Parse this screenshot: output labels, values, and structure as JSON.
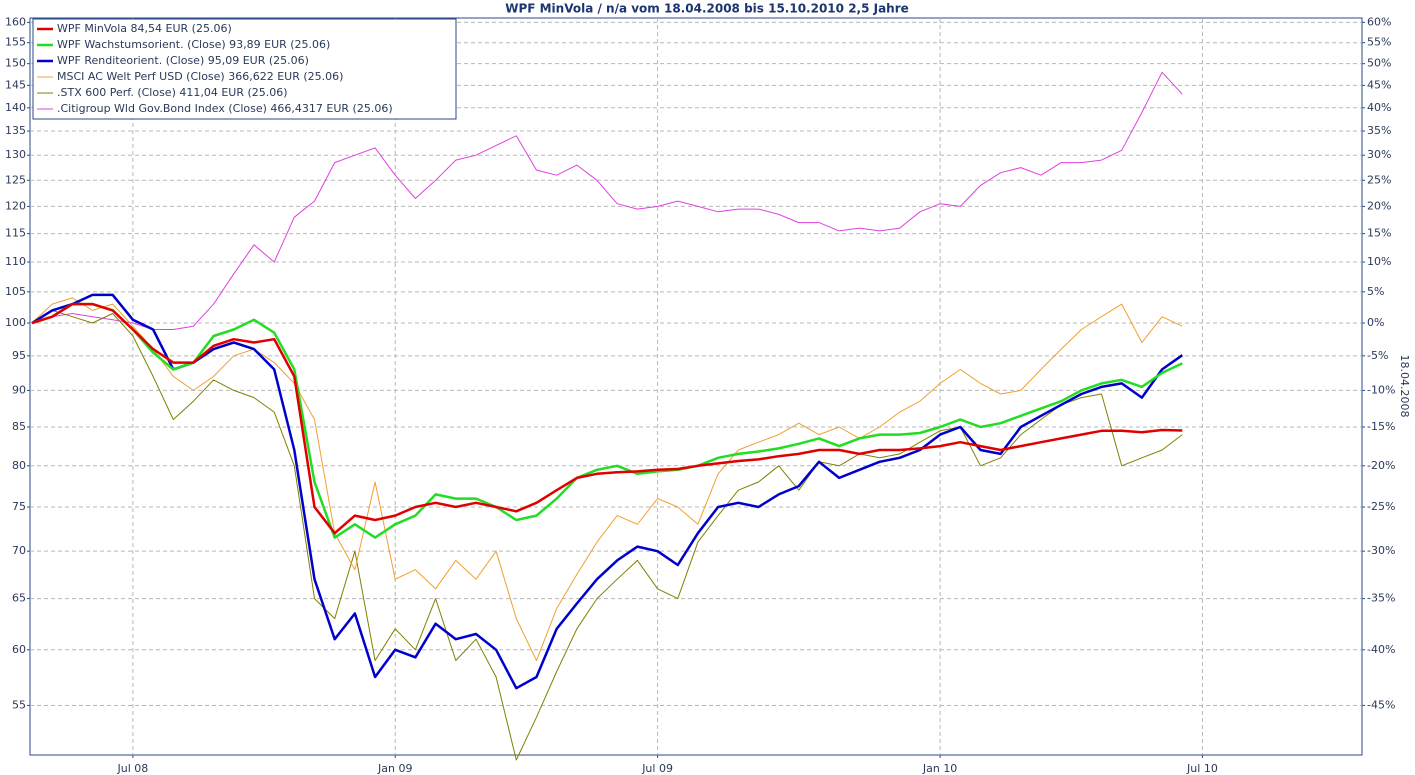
{
  "chart_data": {
    "type": "line",
    "title": "WPF MinVola / n/a vom 18.04.2008 bis 15.10.2010 2,5 Jahre",
    "y2_label": "18.04.2008",
    "yscale": "log",
    "y2scale": "log",
    "grid": true,
    "legend": "upper left",
    "categories": [
      null,
      null,
      null,
      null,
      null,
      "Jul 08",
      null,
      null,
      null,
      null,
      null,
      null,
      null,
      null,
      null,
      null,
      null,
      null,
      "Jan 09",
      null,
      null,
      null,
      null,
      null,
      null,
      null,
      null,
      null,
      null,
      null,
      null,
      "Jul 09",
      null,
      null,
      null,
      null,
      null,
      null,
      null,
      null,
      null,
      null,
      null,
      null,
      null,
      "Jan 10",
      null,
      null,
      null,
      null,
      null,
      null,
      null,
      null,
      null,
      null,
      null,
      null,
      "Jul 10"
    ],
    "ylim": [
      50.9,
      161.1
    ],
    "yticks": [
      55,
      60,
      65,
      70,
      75,
      80,
      85,
      90,
      95,
      100,
      105,
      110,
      115,
      120,
      125,
      130,
      135,
      140,
      145,
      150,
      155,
      160
    ],
    "y2lim": [
      -49.1,
      61.1
    ],
    "y2ticks": [
      {
        "value": -45,
        "label": "-45%"
      },
      {
        "value": -40,
        "label": "-40%"
      },
      {
        "value": -35,
        "label": "-35%"
      },
      {
        "value": -30,
        "label": "-30%"
      },
      {
        "value": -25,
        "label": "-25%"
      },
      {
        "value": -20,
        "label": "-20%"
      },
      {
        "value": -15,
        "label": "-15%"
      },
      {
        "value": -10,
        "label": "-10%"
      },
      {
        "value": -5,
        "label": "-5%"
      },
      {
        "value": 0,
        "label": "0%"
      },
      {
        "value": 5,
        "label": "5%"
      },
      {
        "value": 10,
        "label": "10%"
      },
      {
        "value": 15,
        "label": "15%"
      },
      {
        "value": 20,
        "label": "20%"
      },
      {
        "value": 25,
        "label": "25%"
      },
      {
        "value": 30,
        "label": "30%"
      },
      {
        "value": 35,
        "label": "35%"
      },
      {
        "value": 40,
        "label": "40%"
      },
      {
        "value": 45,
        "label": "45%"
      },
      {
        "value": 50,
        "label": "50%"
      },
      {
        "value": 55,
        "label": "55%"
      },
      {
        "value": 60,
        "label": "60%"
      }
    ],
    "series": [
      {
        "name": "WPF MinVola 84,54 EUR (25.06)",
        "color": "#e00000",
        "width": 2.5,
        "values": [
          100,
          101,
          103,
          103,
          102,
          99,
          96,
          94,
          94,
          96.5,
          97.5,
          97,
          97.5,
          92,
          75,
          72,
          74,
          73.5,
          74,
          75,
          75.5,
          75,
          75.5,
          75,
          74.5,
          75.5,
          77,
          78.5,
          79,
          79.2,
          79.3,
          79.5,
          79.6,
          80,
          80.3,
          80.6,
          80.8,
          81.2,
          81.5,
          82,
          82,
          81.5,
          82,
          82,
          82.2,
          82.5,
          83,
          82.5,
          82,
          82.5,
          83,
          83.5,
          84,
          84.5,
          84.5,
          84.3,
          84.6,
          84.54,
          null
        ]
      },
      {
        "name": "WPF Wachstumsorient. (Close) 93,89 EUR (25.06)",
        "color": "#22dd22",
        "width": 2.5,
        "values": [
          100,
          101,
          103,
          103,
          102,
          99,
          95.5,
          93,
          94,
          98,
          99,
          100.5,
          98.5,
          93,
          78,
          71.5,
          73,
          71.5,
          73,
          74,
          76.5,
          76,
          76,
          75,
          73.5,
          74,
          76,
          78.5,
          79.5,
          80,
          79,
          79.3,
          79.5,
          80,
          81,
          81.5,
          81.8,
          82.2,
          82.8,
          83.5,
          82.5,
          83.5,
          84,
          84,
          84.2,
          85,
          86,
          85,
          85.5,
          86.5,
          87.5,
          88.5,
          90,
          91,
          91.5,
          90.5,
          92.5,
          93.89,
          null
        ]
      },
      {
        "name": "WPF Renditeorient. (Close) 95,09 EUR (25.06)",
        "color": "#0000cc",
        "width": 2.5,
        "values": [
          100,
          102,
          103,
          104.5,
          104.5,
          100.5,
          99,
          93,
          94,
          96,
          97,
          96,
          93,
          82,
          67,
          61,
          63.5,
          57.5,
          60,
          59.3,
          62.5,
          61,
          61.5,
          60,
          56.5,
          57.5,
          62,
          64.5,
          67,
          69,
          70.5,
          70,
          68.5,
          72,
          75,
          75.5,
          75,
          76.5,
          77.5,
          80.5,
          78.5,
          79.5,
          80.5,
          81,
          82,
          84,
          85,
          82,
          81.5,
          85,
          86.5,
          88,
          89.5,
          90.5,
          91,
          89,
          93,
          95.09,
          null
        ]
      },
      {
        "name": "MSCI AC Welt Perf USD (Close) 366,622 EUR (25.06)",
        "color": "#f0a030",
        "width": 1,
        "values": [
          100,
          103,
          104,
          102,
          103,
          99.5,
          96,
          92,
          90,
          92,
          95,
          96,
          94,
          91,
          86,
          72,
          68,
          78,
          67,
          68,
          66,
          69,
          67,
          70,
          63,
          59,
          64,
          67.5,
          71,
          74,
          73,
          76,
          75,
          73,
          79,
          82,
          83,
          84,
          85.5,
          84,
          85,
          83.5,
          85,
          87,
          88.5,
          91,
          93,
          91,
          89.5,
          90,
          93,
          96,
          99,
          101,
          103,
          97,
          101,
          99.5,
          null
        ]
      },
      {
        "name": ".STX 600 Perf. (Close) 411,04 EUR (25.06)",
        "color": "#808000",
        "width": 1,
        "values": [
          100,
          102,
          101,
          100,
          101.5,
          98,
          92,
          86,
          88.5,
          91.5,
          90,
          89,
          87,
          80,
          65,
          63,
          70,
          59,
          62,
          60,
          65,
          59,
          61,
          57.5,
          50.5,
          54,
          58,
          62,
          65,
          67,
          69,
          66,
          65,
          71,
          74,
          77,
          78,
          80,
          77,
          80.5,
          80,
          81.5,
          81,
          81.5,
          83,
          84.5,
          85,
          80,
          81,
          84,
          86,
          88,
          89,
          89.5,
          80,
          81,
          82,
          84,
          null
        ]
      },
      {
        "name": ".Citigroup Wld Gov.Bond Index (Close) 466,4317 EUR (25.06)",
        "color": "#e040e0",
        "width": 1,
        "values": [
          100,
          101,
          101.5,
          101,
          100.5,
          100,
          99,
          99,
          99.5,
          103,
          108,
          113,
          110,
          118,
          121,
          128.5,
          130,
          131.5,
          126,
          121.5,
          125,
          129,
          130,
          132,
          134,
          127,
          126,
          128,
          125,
          120.5,
          119.5,
          120,
          121,
          120,
          119,
          119.5,
          119.5,
          118.5,
          117,
          117,
          115.5,
          116,
          115.5,
          116,
          119,
          120.5,
          120,
          124,
          126.5,
          127.5,
          126,
          128.5,
          128.5,
          129,
          131,
          139,
          148,
          143,
          null
        ]
      }
    ]
  }
}
